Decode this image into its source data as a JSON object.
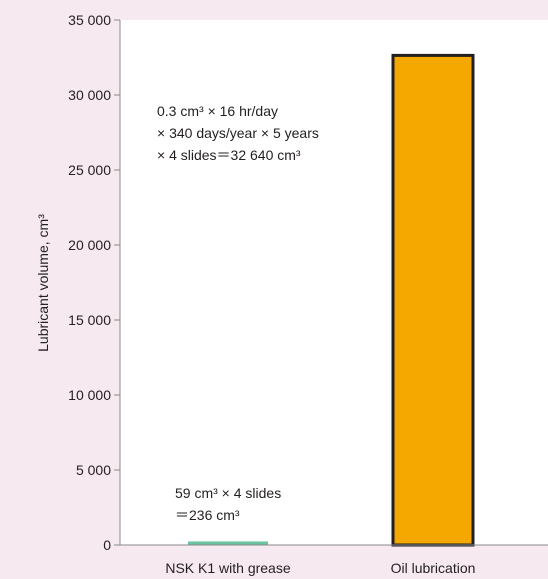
{
  "chart_data": {
    "type": "bar",
    "ylabel": "Lubricant volume, cm³",
    "ylim": [
      0,
      35000
    ],
    "grid": false,
    "y_ticks": [
      {
        "value": 0,
        "label": "0"
      },
      {
        "value": 5000,
        "label": "5 000"
      },
      {
        "value": 10000,
        "label": "10 000"
      },
      {
        "value": 15000,
        "label": "15 000"
      },
      {
        "value": 20000,
        "label": "20 000"
      },
      {
        "value": 25000,
        "label": "25 000"
      },
      {
        "value": 30000,
        "label": "30 000"
      },
      {
        "value": 35000,
        "label": "35 000"
      }
    ],
    "categories": [
      "NSK K1 with grease",
      "Oil lubrication"
    ],
    "values": [
      236,
      32640
    ],
    "bar_colors": [
      "#6cc39f",
      "#f5a800"
    ],
    "annotations": [
      {
        "lines": [
          "0.3 cm³ × 16 hr/day",
          "× 340 days/year × 5 years",
          "× 4 slides＝32 640 cm³"
        ]
      },
      {
        "lines": [
          "59 cm³ × 4 slides",
          "＝236 cm³"
        ]
      }
    ]
  },
  "colors": {
    "background": "#f6e9ef",
    "plot_background": "#ffffff",
    "axis": "#8a8a8a",
    "bar_outline": "#231f20"
  }
}
